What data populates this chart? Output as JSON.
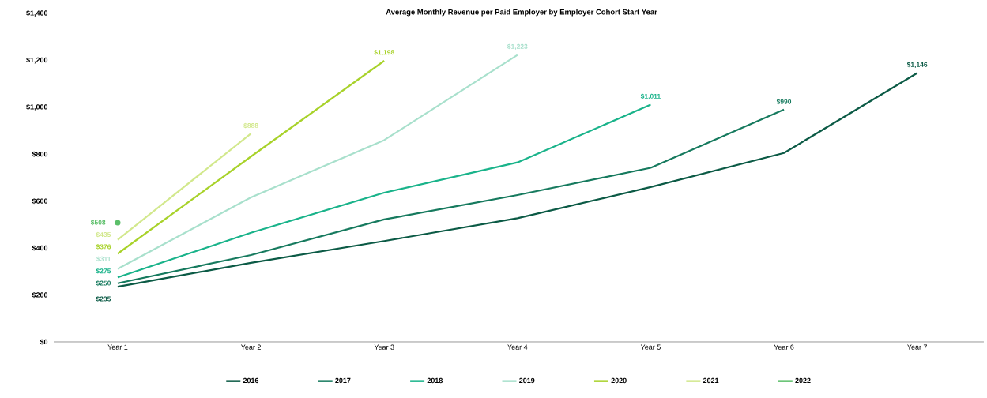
{
  "chart_data": {
    "type": "line",
    "title": "Average Monthly Revenue per Paid Employer by Employer Cohort Start Year",
    "categories": [
      "Year 1",
      "Year 2",
      "Year 3",
      "Year 4",
      "Year 5",
      "Year 6",
      "Year 7"
    ],
    "ylim": [
      0,
      1400
    ],
    "yticks": [
      {
        "value": 0,
        "label": "$0"
      },
      {
        "value": 200,
        "label": "$200"
      },
      {
        "value": 400,
        "label": "$400"
      },
      {
        "value": 600,
        "label": "$600"
      },
      {
        "value": 800,
        "label": "$800"
      },
      {
        "value": 1000,
        "label": "$1,000"
      },
      {
        "value": 1200,
        "label": "$1,200"
      },
      {
        "value": 1400,
        "label": "$1,400"
      }
    ],
    "grid": false,
    "legend": "bottom",
    "marker": "none",
    "series": [
      {
        "name": "2016",
        "color": "#0b5a45",
        "values": [
          235,
          337,
          430,
          527,
          660,
          805,
          1146
        ],
        "value_labels": [
          "$235",
          null,
          null,
          null,
          null,
          null,
          "$1,146"
        ]
      },
      {
        "name": "2017",
        "color": "#167a5e",
        "values": [
          250,
          370,
          522,
          626,
          742,
          990,
          null
        ],
        "value_labels": [
          "$250",
          null,
          null,
          null,
          null,
          "$990",
          null
        ]
      },
      {
        "name": "2018",
        "color": "#19b38a",
        "values": [
          275,
          465,
          636,
          765,
          1011,
          null,
          null
        ],
        "value_labels": [
          "$275",
          null,
          null,
          null,
          "$1,011",
          null,
          null
        ]
      },
      {
        "name": "2019",
        "color": "#a8e0cc",
        "values": [
          311,
          616,
          860,
          1223,
          null,
          null,
          null
        ],
        "value_labels": [
          "$311",
          null,
          null,
          "$1,223",
          null,
          null,
          null
        ]
      },
      {
        "name": "2020",
        "color": "#a8d22a",
        "values": [
          376,
          790,
          1198,
          null,
          null,
          null,
          null
        ],
        "value_labels": [
          "$376",
          null,
          "$1,198",
          null,
          null,
          null,
          null
        ]
      },
      {
        "name": "2021",
        "color": "#d2e88c",
        "values": [
          435,
          888,
          null,
          null,
          null,
          null,
          null
        ],
        "value_labels": [
          "$435",
          "$888",
          null,
          null,
          null,
          null,
          null
        ]
      },
      {
        "name": "2022",
        "color": "#5cbf6a",
        "marker": "circle",
        "values": [
          508,
          null,
          null,
          null,
          null,
          null,
          null
        ],
        "value_labels": [
          "$508",
          null,
          null,
          null,
          null,
          null,
          null
        ]
      }
    ]
  }
}
